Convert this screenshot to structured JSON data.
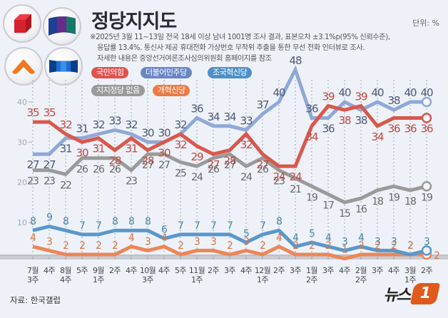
{
  "header": {
    "title": "정당지지도",
    "unit": "단위: %",
    "notes": [
      "※2025년 3월 11~13일 전국 18세 이상 남녀 1001명 조사 결과, 표본오차 ±3.1%p(95% 신뢰수준),",
      "응답률 13.4%. 통신사 제공 휴대전화 가상번호 무작위 추출을 통한 무선 전화 인터뷰로 조사.",
      "자세한 내용은 중앙선거여론조사심의위원회 홈페이지를 참조"
    ]
  },
  "logos": [
    {
      "name": "ppp-logo-icon"
    },
    {
      "name": "democratic-party-logo-icon"
    },
    {
      "name": "reform-party-logo-icon"
    },
    {
      "name": "rebuilding-korea-logo-icon"
    }
  ],
  "footer": {
    "source": "자료: 한국갤럽",
    "brand": "뉴스",
    "brand_badge": "1"
  },
  "chart_data": {
    "type": "line",
    "title": "정당지지도",
    "unit": "%",
    "xlabel": "",
    "ylabel": "",
    "ylim": [
      0,
      50
    ],
    "yticks": [
      10,
      20,
      30,
      40
    ],
    "grid": false,
    "legend": "top-left",
    "categories": [
      [
        "7월",
        "3주"
      ],
      [
        "4주"
      ],
      [
        "8월",
        "4주"
      ],
      [
        "5주"
      ],
      [
        "9월",
        "1주"
      ],
      [
        "2주"
      ],
      [
        "4주"
      ],
      [
        "10월",
        "3주"
      ],
      [
        "4주"
      ],
      [
        "5주"
      ],
      [
        "11월",
        "1주"
      ],
      [
        "2주"
      ],
      [
        "3주"
      ],
      [
        "4주"
      ],
      [
        "12월",
        "1주"
      ],
      [
        "2주"
      ],
      [
        "3주"
      ],
      [
        "1월",
        "2주"
      ],
      [
        "3주"
      ],
      [
        "4주"
      ],
      [
        "2월",
        "2주"
      ],
      [
        "3주"
      ],
      [
        "4주"
      ],
      [
        "3월",
        "1주"
      ],
      [
        "2주"
      ]
    ],
    "series": [
      {
        "name": "국민의힘",
        "key": "ppp",
        "line_color": "#d9584c",
        "label_color": "#c8463f",
        "chip_color": "#e0524f",
        "label_pos": "auto",
        "values": [
          35,
          35,
          32,
          30,
          31,
          28,
          31,
          28,
          30,
          32,
          29,
          27,
          28,
          32,
          27,
          24,
          24,
          34,
          39,
          38,
          39,
          34,
          36,
          36,
          36
        ]
      },
      {
        "name": "더불어민주당",
        "key": "dpk",
        "line_color": "#90a8d8",
        "label_color": "#4d5878",
        "chip_color": "#6a86c4",
        "label_pos": "auto",
        "values": [
          27,
          27,
          31,
          31,
          32,
          33,
          32,
          30,
          30,
          32,
          36,
          34,
          34,
          33,
          37,
          40,
          48,
          36,
          36,
          40,
          38,
          40,
          38,
          40,
          40
        ]
      },
      {
        "name": "조국혁신당",
        "key": "rebuild",
        "line_color": "#5a97cc",
        "label_color": "#4a87a6",
        "chip_color": "#4f90c8",
        "label_pos": "above",
        "values": [
          8,
          9,
          8,
          7,
          7,
          8,
          8,
          8,
          6,
          7,
          7,
          7,
          7,
          5,
          7,
          8,
          4,
          5,
          4,
          3,
          4,
          3,
          3,
          2,
          3
        ]
      },
      {
        "name": "지지정당 없음",
        "key": "none",
        "line_color": "#9a9a9a",
        "label_color": "#666666",
        "chip_color": "#9a9a9a",
        "label_pos": "below",
        "values": [
          23,
          23,
          22,
          26,
          26,
          26,
          23,
          27,
          27,
          25,
          24,
          26,
          27,
          24,
          26,
          23,
          21,
          19,
          17,
          15,
          16,
          18,
          19,
          18,
          19
        ]
      },
      {
        "name": "개혁신당",
        "key": "reform",
        "line_color": "#ec8658",
        "label_color": "#d9784a",
        "chip_color": "#ee7b45",
        "label_pos": "above",
        "values": [
          4,
          3,
          2,
          2,
          2,
          2,
          4,
          3,
          4,
          2,
          3,
          3,
          2,
          3,
          2,
          4,
          2,
          2,
          2,
          1,
          2,
          2,
          2,
          2,
          2
        ]
      }
    ]
  }
}
